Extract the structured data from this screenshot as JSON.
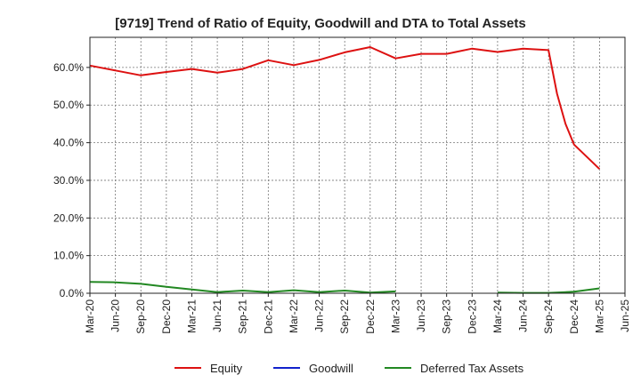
{
  "chart_data": {
    "type": "line",
    "title": "[9719]  Trend of Ratio of Equity, Goodwill and DTA to Total Assets",
    "xlabel": "",
    "ylabel": "",
    "ylim": [
      0,
      68
    ],
    "y_ticks": [
      0,
      10,
      20,
      30,
      40,
      50,
      60
    ],
    "y_tick_labels": [
      "0.0%",
      "10.0%",
      "20.0%",
      "30.0%",
      "40.0%",
      "50.0%",
      "60.0%"
    ],
    "x": [
      "Mar-20",
      "Jun-20",
      "Sep-20",
      "Dec-20",
      "Mar-21",
      "Jun-21",
      "Sep-21",
      "Dec-21",
      "Mar-22",
      "Jun-22",
      "Sep-22",
      "Dec-22",
      "Mar-23",
      "Jun-23",
      "Sep-23",
      "Dec-23",
      "Mar-24",
      "Jun-24",
      "Sep-24",
      "Dec-24",
      "Mar-25",
      "Jun-25"
    ],
    "grid": true,
    "legend_position": "bottom",
    "series": [
      {
        "name": "Equity",
        "color": "#dd1111",
        "points": [
          [
            "Mar-20",
            60.5
          ],
          [
            "Jun-20",
            59.2
          ],
          [
            "Sep-20",
            57.9
          ],
          [
            "Dec-20",
            58.8
          ],
          [
            "Mar-21",
            59.6
          ],
          [
            "Jun-21",
            58.6
          ],
          [
            "Sep-21",
            59.6
          ],
          [
            "Dec-21",
            61.9
          ],
          [
            "Mar-22",
            60.6
          ],
          [
            "Jun-22",
            62.0
          ],
          [
            "Sep-22",
            64.0
          ],
          [
            "Dec-22",
            65.4
          ],
          [
            "Mar-23",
            62.4
          ],
          [
            "Jun-23",
            63.6
          ],
          [
            "Sep-23",
            63.6
          ],
          [
            "Dec-23",
            65.0
          ],
          [
            "Mar-24",
            64.1
          ],
          [
            "Jun-24",
            65.0
          ],
          [
            "Sep-24",
            64.6
          ],
          [
            "Oct-24",
            53.0
          ],
          [
            "Nov-24",
            45.0
          ],
          [
            "Dec-24",
            39.5
          ],
          [
            "Mar-25",
            33.0
          ]
        ]
      },
      {
        "name": "Goodwill",
        "color": "#1122cc",
        "points": []
      },
      {
        "name": "Deferred Tax Assets",
        "color": "#228822",
        "points": [
          [
            "Mar-20",
            3.0
          ],
          [
            "Jun-20",
            2.9
          ],
          [
            "Sep-20",
            2.5
          ],
          [
            "Dec-20",
            1.7
          ],
          [
            "Mar-21",
            1.0
          ],
          [
            "Jun-21",
            0.3
          ],
          [
            "Sep-21",
            0.7
          ],
          [
            "Dec-21",
            0.3
          ],
          [
            "Mar-22",
            0.8
          ],
          [
            "Jun-22",
            0.3
          ],
          [
            "Sep-22",
            0.7
          ],
          [
            "Dec-22",
            0.2
          ],
          [
            "Mar-23",
            0.5
          ],
          [
            "Jun-23",
            null
          ],
          [
            "Sep-23",
            null
          ],
          [
            "Dec-23",
            null
          ],
          [
            "Mar-24",
            0.2
          ],
          [
            "Jun-24",
            0.1
          ],
          [
            "Sep-24",
            0.1
          ],
          [
            "Dec-24",
            0.4
          ],
          [
            "Mar-25",
            1.3
          ]
        ]
      }
    ]
  }
}
